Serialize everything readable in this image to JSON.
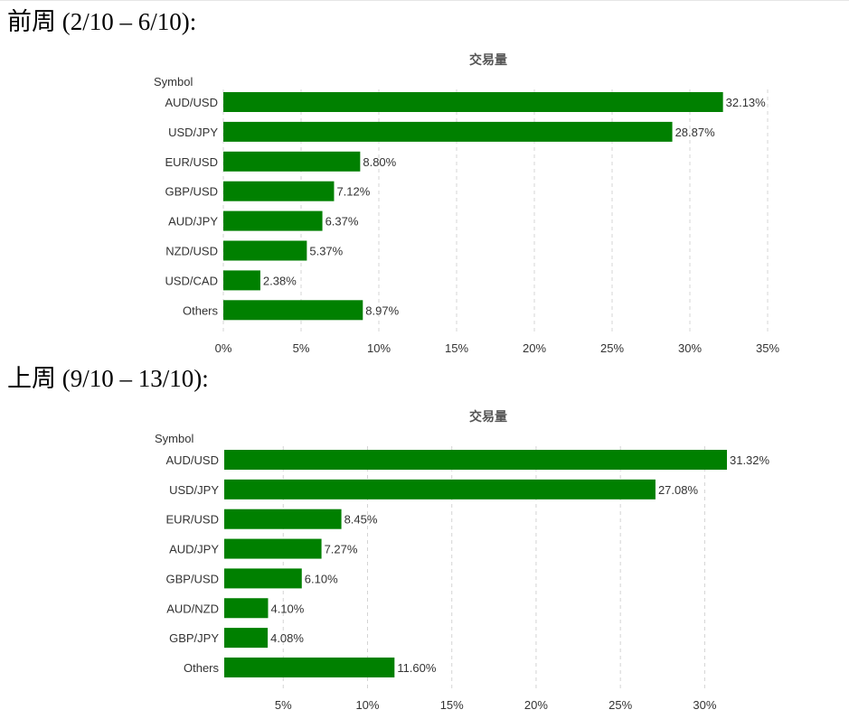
{
  "periods": [
    {
      "label": "前周 (2/10 – 6/10):"
    },
    {
      "label": "上周 (9/10 – 13/10):"
    }
  ],
  "chart_data": [
    {
      "type": "bar",
      "orientation": "horizontal",
      "title": "交易量",
      "ylabel": "Symbol",
      "categories": [
        "AUD/USD",
        "USD/JPY",
        "EUR/USD",
        "GBP/USD",
        "AUD/JPY",
        "NZD/USD",
        "USD/CAD",
        "Others"
      ],
      "values": [
        32.13,
        28.87,
        8.8,
        7.12,
        6.37,
        5.37,
        2.38,
        8.97
      ],
      "value_labels": [
        "32.13%",
        "28.87%",
        "8.80%",
        "7.12%",
        "6.37%",
        "5.37%",
        "2.38%",
        "8.97%"
      ],
      "xlim": [
        0,
        35
      ],
      "ticks": [
        0,
        5,
        10,
        15,
        20,
        25,
        30,
        35
      ],
      "tick_labels": [
        "0%",
        "5%",
        "10%",
        "15%",
        "20%",
        "25%",
        "30%",
        "35%"
      ],
      "grid": true,
      "bar_color": "#008000"
    },
    {
      "type": "bar",
      "orientation": "horizontal",
      "title": "交易量",
      "ylabel": "Symbol",
      "categories": [
        "AUD/USD",
        "USD/JPY",
        "EUR/USD",
        "AUD/JPY",
        "GBP/USD",
        "AUD/NZD",
        "GBP/JPY",
        "Others"
      ],
      "values": [
        31.32,
        27.08,
        8.45,
        7.27,
        6.1,
        4.1,
        4.08,
        11.6
      ],
      "value_labels": [
        "31.32%",
        "27.08%",
        "8.45%",
        "7.27%",
        "6.10%",
        "4.10%",
        "4.08%",
        "11.60%"
      ],
      "xlim": [
        1.5,
        32.5
      ],
      "ticks": [
        5,
        10,
        15,
        20,
        25,
        30
      ],
      "tick_labels": [
        "5%",
        "10%",
        "15%",
        "20%",
        "25%",
        "30%"
      ],
      "grid": true,
      "bar_color": "#008000"
    }
  ]
}
